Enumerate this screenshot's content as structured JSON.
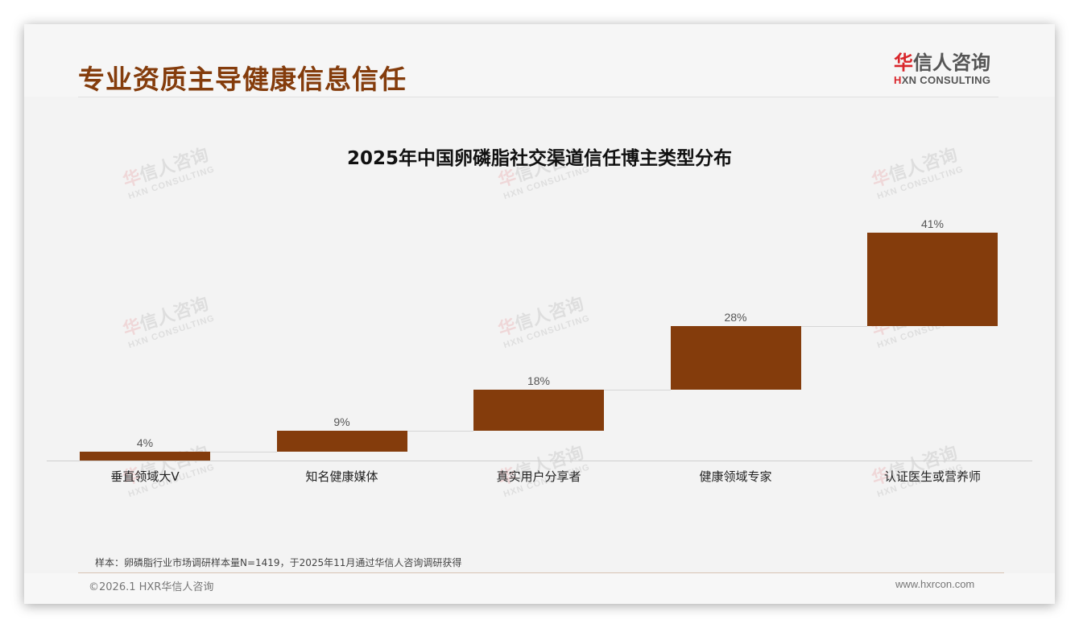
{
  "header": {
    "title": "专业资质主导健康信息信任",
    "logo": {
      "cn_red": "华",
      "cn_rest": "信人咨询",
      "en_red": "H",
      "en_rest": "XN CONSULTING"
    }
  },
  "watermark": {
    "cn_red": "华",
    "cn_rest": "信人咨询",
    "en": "HXN CONSULTING"
  },
  "colors": {
    "title": "#843c0c",
    "bar": "#843c0c",
    "logo_red": "#d9262b"
  },
  "chart_data": {
    "type": "bar",
    "subtype": "waterfall",
    "title": "2025年中国卵磷脂社交渠道信任博主类型分布",
    "categories": [
      "垂直领域大V",
      "知名健康媒体",
      "真实用户分享者",
      "健康领域专家",
      "认证医生或营养师"
    ],
    "values": [
      4,
      9,
      18,
      28,
      41
    ],
    "value_labels": [
      "4%",
      "9%",
      "18%",
      "28%",
      "41%"
    ],
    "unit": "%",
    "xlabel": "",
    "ylabel": "",
    "ylim": [
      0,
      100
    ],
    "grid": false,
    "legend": "none"
  },
  "footer": {
    "note": "样本：卵磷脂行业市场调研样本量N=1419，于2025年11月通过华信人咨询调研获得",
    "copyright": "©2026.1 HXR华信人咨询",
    "website": "www.hxrcon.com"
  }
}
